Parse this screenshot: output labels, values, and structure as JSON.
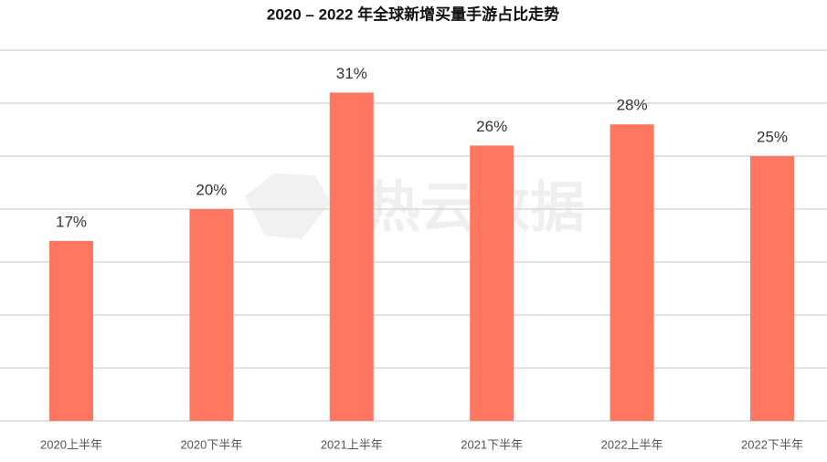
{
  "chart_data": {
    "type": "bar",
    "title": "2020 – 2022 年全球新增买量手游占比走势",
    "categories": [
      "2020上半年",
      "2020下半年",
      "2021上半年",
      "2021下半年",
      "2022上半年",
      "2022下半年"
    ],
    "values": [
      17,
      20,
      31,
      26,
      28,
      25
    ],
    "value_labels": [
      "17%",
      "20%",
      "31%",
      "26%",
      "28%",
      "25%"
    ],
    "color": "#ff7761",
    "ylim": [
      0,
      35
    ],
    "yticks": [
      0,
      5,
      10,
      15,
      20,
      25,
      30,
      35
    ],
    "grid": true,
    "watermark": "热云数据"
  }
}
